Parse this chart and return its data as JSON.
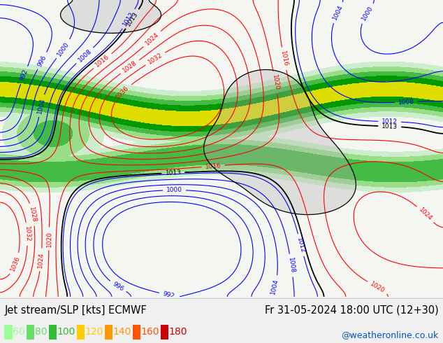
{
  "title_left": "Jet stream/SLP [kts] ECMWF",
  "title_right": "Fr 31-05-2024 18:00 UTC (12+30)",
  "credit": "@weatheronline.co.uk",
  "legend_values": [
    "60",
    "80",
    "100",
    "120",
    "140",
    "160",
    "180"
  ],
  "legend_colors": [
    "#99ff99",
    "#66dd66",
    "#33bb33",
    "#ffcc00",
    "#ff9900",
    "#ff5500",
    "#cc0000"
  ],
  "bg_color": "#f8f8f8",
  "map_bg": "#f0f0f0",
  "title_fontsize": 10.5,
  "legend_fontsize": 10,
  "credit_fontsize": 9,
  "title_color": "#000000",
  "credit_color": "#0055cc",
  "bottom_bar_height": 0.135,
  "bottom_bar_color": "#f0f0f0"
}
